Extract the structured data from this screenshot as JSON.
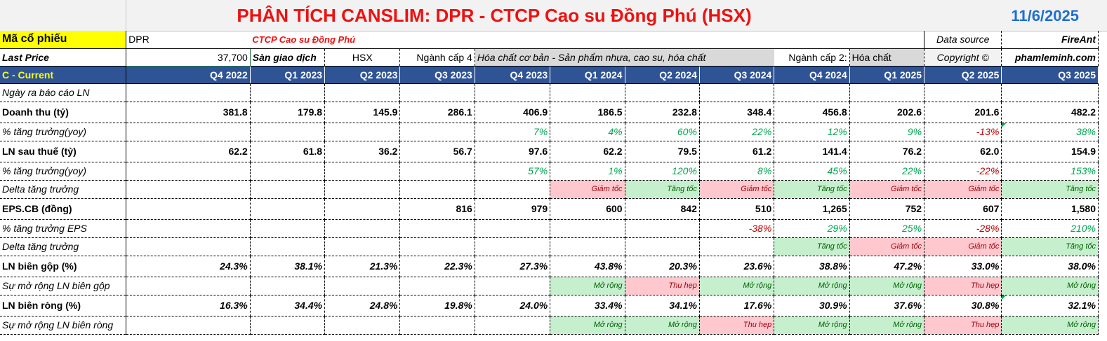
{
  "title": "PHÂN TÍCH CANSLIM: DPR - CTCP Cao su Đồng Phú (HSX)",
  "date": "11/6/2025",
  "ticker_row": {
    "label": "Mã cổ phiếu",
    "ticker": "DPR",
    "company": "CTCP Cao su Đồng Phú",
    "source_label": "Data source",
    "source_value": "FireAnt"
  },
  "price_row": {
    "label": "Last Price",
    "price": "37,700",
    "exchange_label": "Sàn giao dịch",
    "exchange": "HSX",
    "industry4_label": "Ngành cấp 4",
    "industry4": "Hóa chất cơ bản - Sản phẩm nhựa, cao su, hóa chất",
    "industry2_label": "Ngành cấp 2:",
    "industry2": "Hóa chất",
    "copyright_label": "Copyright ©",
    "copyright": "phamleminh.com"
  },
  "header": {
    "label": "C - Current",
    "quarters": [
      "Q4 2022",
      "Q1 2023",
      "Q2 2023",
      "Q3 2023",
      "Q4 2023",
      "Q1 2024",
      "Q2 2024",
      "Q3 2024",
      "Q4 2024",
      "Q1 2025",
      "Q2 2025",
      "Q3 2025"
    ]
  },
  "rows": {
    "report_date": {
      "label": "Ngày ra báo cáo LN"
    },
    "revenue": {
      "label": "Doanh thu (tỷ)",
      "values": [
        "381.8",
        "179.8",
        "145.9",
        "286.1",
        "406.9",
        "186.5",
        "232.8",
        "348.4",
        "456.8",
        "202.6",
        "201.6",
        "482.2"
      ]
    },
    "revenue_growth": {
      "label": "% tăng trưởng(yoy)",
      "values": [
        "",
        "",
        "",
        "",
        "7%",
        "4%",
        "60%",
        "22%",
        "12%",
        "9%",
        "-13%",
        "38%"
      ]
    },
    "net_income": {
      "label": "LN sau thuế (tỷ)",
      "values": [
        "62.2",
        "61.8",
        "36.2",
        "56.7",
        "97.6",
        "62.2",
        "79.5",
        "61.2",
        "141.4",
        "76.2",
        "62.0",
        "154.9"
      ]
    },
    "net_income_growth": {
      "label": "% tăng trưởng(yoy)",
      "values": [
        "",
        "",
        "",
        "",
        "57%",
        "1%",
        "120%",
        "8%",
        "45%",
        "22%",
        "-22%",
        "153%"
      ]
    },
    "delta_growth": {
      "label": "Delta tăng trưởng",
      "values": [
        "",
        "",
        "",
        "",
        "",
        "Giảm tốc",
        "Tăng tốc",
        "Giảm tốc",
        "Tăng tốc",
        "Giảm tốc",
        "Giảm tốc",
        "Tăng tốc"
      ]
    },
    "eps": {
      "label": "EPS.CB (đồng)",
      "values": [
        "",
        "",
        "",
        "816",
        "979",
        "600",
        "842",
        "510",
        "1,265",
        "752",
        "607",
        "1,580"
      ]
    },
    "eps_growth": {
      "label": "% tăng trưởng EPS",
      "values": [
        "",
        "",
        "",
        "",
        "",
        "",
        "",
        "-38%",
        "29%",
        "25%",
        "-28%",
        "210%"
      ]
    },
    "eps_delta": {
      "label": "Delta tăng trưởng",
      "values": [
        "",
        "",
        "",
        "",
        "",
        "",
        "",
        "",
        "Tăng tốc",
        "Giảm tốc",
        "Giảm tốc",
        "Tăng tốc"
      ]
    },
    "gross_margin": {
      "label": "LN biên gộp (%)",
      "values": [
        "24.3%",
        "38.1%",
        "21.3%",
        "22.3%",
        "27.3%",
        "43.8%",
        "20.3%",
        "23.6%",
        "38.8%",
        "47.2%",
        "33.0%",
        "38.0%"
      ]
    },
    "gross_margin_exp": {
      "label": "Sự mở rộng LN biên gộp",
      "values": [
        "",
        "",
        "",
        "",
        "",
        "Mở rộng",
        "Thu hẹp",
        "Mở rộng",
        "Mở rộng",
        "Mở rộng",
        "Thu hẹp",
        "Mở rộng"
      ]
    },
    "net_margin": {
      "label": "LN biên ròng (%)",
      "values": [
        "16.3%",
        "34.4%",
        "24.8%",
        "19.8%",
        "24.0%",
        "33.4%",
        "34.1%",
        "17.6%",
        "30.9%",
        "37.6%",
        "30.8%",
        "32.1%"
      ]
    },
    "net_margin_exp": {
      "label": "Sự mở rộng LN biên ròng",
      "values": [
        "",
        "",
        "",
        "",
        "",
        "Mở rộng",
        "Mở rộng",
        "Thu hẹp",
        "Mở rộng",
        "Mở rộng",
        "Thu hẹp",
        "Mở rộng"
      ]
    }
  },
  "colors": {
    "header_blue": "#2f5496",
    "title_red": "#ee1111",
    "date_blue": "#1f6fd2",
    "good_fill": "#c6efce",
    "bad_fill": "#ffc7ce",
    "pos_text": "#00a650",
    "neg_text": "#c00000"
  }
}
